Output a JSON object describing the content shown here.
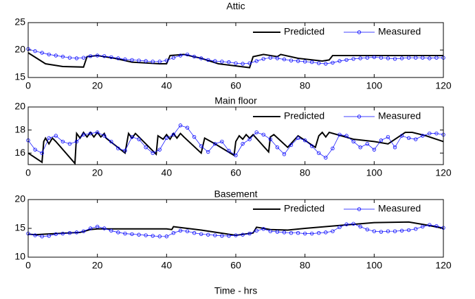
{
  "chart_data": [
    {
      "type": "line",
      "title": "Attic",
      "xlim": [
        0,
        120
      ],
      "xticks": [
        0,
        20,
        40,
        60,
        80,
        100,
        120
      ],
      "ylim": [
        15,
        25
      ],
      "yticks": [
        15,
        20,
        25
      ],
      "series": [
        {
          "name": "Predicted",
          "color": "#000000",
          "x": [
            0,
            5,
            10,
            16,
            17,
            20,
            25,
            30,
            38,
            40,
            41,
            45,
            50,
            55,
            64,
            65,
            68,
            72,
            73,
            78,
            85,
            87,
            88,
            120
          ],
          "values": [
            19.5,
            17.5,
            17,
            16.9,
            18.8,
            19,
            18.5,
            17.8,
            17.5,
            17.5,
            19,
            19.2,
            18.5,
            17.5,
            16.8,
            18.8,
            19.2,
            18.8,
            19.2,
            18.5,
            18,
            18.2,
            19,
            19
          ]
        },
        {
          "name": "Measured",
          "color": "#0000ff",
          "x": [
            0,
            2,
            4,
            6,
            8,
            10,
            12,
            14,
            16,
            18,
            20,
            22,
            24,
            26,
            28,
            30,
            32,
            34,
            36,
            38,
            40,
            42,
            44,
            46,
            48,
            50,
            52,
            54,
            56,
            58,
            60,
            62,
            64,
            66,
            68,
            70,
            72,
            74,
            76,
            78,
            80,
            82,
            84,
            86,
            88,
            90,
            92,
            94,
            96,
            98,
            100,
            102,
            104,
            106,
            108,
            110,
            112,
            114,
            116,
            118,
            120
          ],
          "values": [
            20.2,
            19.8,
            19.5,
            19.2,
            19,
            18.8,
            18.6,
            18.5,
            18.6,
            18.9,
            19,
            18.9,
            18.7,
            18.5,
            18.3,
            18.2,
            18.1,
            18,
            17.9,
            17.9,
            18.1,
            18.6,
            19,
            19.2,
            18.8,
            18.5,
            18.2,
            18,
            17.9,
            17.8,
            17.6,
            17.5,
            17.6,
            18,
            18.4,
            18.6,
            18.5,
            18.3,
            18.1,
            18,
            17.9,
            17.8,
            17.6,
            17.5,
            17.7,
            18,
            18.2,
            18.4,
            18.5,
            18.6,
            18.7,
            18.6,
            18.5,
            18.4,
            18.5,
            18.6,
            18.6,
            18.6,
            18.5,
            18.6,
            18.6
          ]
        }
      ]
    },
    {
      "type": "line",
      "title": "Main floor",
      "xlim": [
        0,
        120
      ],
      "xticks": [
        0,
        20,
        40,
        60,
        80,
        100,
        120
      ],
      "ylim": [
        15,
        20
      ],
      "yticks": [
        16,
        18,
        20
      ],
      "series": [
        {
          "name": "Predicted",
          "color": "#000000",
          "x": [
            0,
            4,
            4.5,
            5,
            6,
            7,
            8,
            13.5,
            14,
            15,
            16,
            17,
            18,
            19,
            20,
            21,
            22,
            22.5,
            28,
            29,
            30,
            31,
            32,
            37,
            37.5,
            39,
            40,
            41,
            42,
            43,
            44,
            45,
            50,
            51,
            54,
            59.5,
            60,
            61,
            62,
            63,
            64,
            65,
            69.5,
            70,
            71,
            75,
            78,
            83,
            84,
            85,
            86,
            87,
            94,
            100,
            104,
            109,
            111,
            115,
            120
          ],
          "values": [
            16,
            15.2,
            17,
            17.3,
            16.8,
            17.3,
            17,
            15.1,
            17.7,
            17.3,
            17.8,
            17.4,
            17.8,
            17.4,
            17.8,
            17.4,
            17.7,
            17.3,
            16,
            17.7,
            17.3,
            17.7,
            17.4,
            15.9,
            17.5,
            17.2,
            17.6,
            17.2,
            17.7,
            17.3,
            17.7,
            17.4,
            16,
            17.3,
            16.8,
            15.8,
            17,
            17.5,
            17.2,
            17.6,
            17.3,
            17.6,
            16.1,
            17.4,
            17.6,
            16.5,
            17.5,
            16.5,
            17.5,
            17.8,
            17.4,
            17.8,
            17.2,
            17,
            16.8,
            17.8,
            17.8,
            17.5,
            17
          ]
        },
        {
          "name": "Measured",
          "color": "#0000ff",
          "x": [
            0,
            2,
            4,
            6,
            8,
            10,
            12,
            14,
            16,
            18,
            20,
            22,
            24,
            26,
            28,
            30,
            32,
            34,
            36,
            38,
            40,
            42,
            44,
            46,
            48,
            50,
            52,
            54,
            56,
            58,
            60,
            62,
            64,
            66,
            68,
            70,
            72,
            74,
            76,
            78,
            80,
            82,
            84,
            86,
            88,
            90,
            92,
            94,
            96,
            98,
            100,
            102,
            104,
            106,
            108,
            110,
            112,
            114,
            116,
            118,
            120
          ],
          "values": [
            17.1,
            16.3,
            16,
            17.3,
            17.5,
            17,
            16.8,
            17,
            17.6,
            17.7,
            17.8,
            17.5,
            17,
            16.4,
            16.2,
            17.4,
            17.2,
            16.5,
            16,
            16.3,
            17.3,
            17.6,
            18.4,
            18.2,
            17.4,
            16.6,
            16.1,
            16.8,
            17,
            16.2,
            15.8,
            16.8,
            17.2,
            17.8,
            17.6,
            17.2,
            16.5,
            15.9,
            16.7,
            17.3,
            17.1,
            16.6,
            16,
            15.6,
            16.4,
            17.6,
            17.5,
            17,
            16.5,
            16.8,
            16.3,
            17.1,
            17.4,
            16.5,
            17.5,
            17.3,
            17.2,
            17.5,
            17.7,
            17.7,
            17.6
          ]
        }
      ]
    },
    {
      "type": "line",
      "title": "Basement",
      "xlabel": "Time - hrs",
      "xlim": [
        0,
        120
      ],
      "xticks": [
        0,
        20,
        40,
        60,
        80,
        100,
        120
      ],
      "ylim": [
        10,
        20
      ],
      "yticks": [
        10,
        15,
        20
      ],
      "series": [
        {
          "name": "Predicted",
          "color": "#000000",
          "x": [
            0,
            2,
            5,
            15,
            18,
            20,
            40,
            41.5,
            42,
            50,
            60,
            65,
            66,
            70,
            75,
            80,
            90,
            100,
            110,
            115,
            120
          ],
          "values": [
            14,
            13.9,
            14,
            14.3,
            14.8,
            14.9,
            14.9,
            14.8,
            15.3,
            14.7,
            13.8,
            14.2,
            15.2,
            14.8,
            14.7,
            15,
            15.5,
            16,
            16.1,
            15.6,
            15
          ]
        },
        {
          "name": "Measured",
          "color": "#0000ff",
          "x": [
            0,
            2,
            4,
            6,
            8,
            10,
            12,
            14,
            16,
            18,
            20,
            22,
            24,
            26,
            28,
            30,
            32,
            34,
            36,
            38,
            40,
            42,
            44,
            46,
            48,
            50,
            52,
            54,
            56,
            58,
            60,
            62,
            64,
            66,
            68,
            70,
            72,
            74,
            76,
            78,
            80,
            82,
            84,
            86,
            88,
            90,
            92,
            94,
            96,
            98,
            100,
            102,
            104,
            106,
            108,
            110,
            112,
            114,
            116,
            118,
            120
          ],
          "values": [
            14.1,
            13.8,
            13.6,
            13.7,
            14,
            14.1,
            14.2,
            14.3,
            14.5,
            15,
            15.3,
            15,
            14.6,
            14.3,
            14.1,
            14,
            13.9,
            13.8,
            13.7,
            13.6,
            13.6,
            14.2,
            14.6,
            14.5,
            14.2,
            14,
            13.9,
            13.8,
            13.7,
            13.7,
            13.8,
            13.9,
            14.1,
            14.6,
            14.9,
            14.5,
            14.4,
            14.3,
            14.2,
            14.2,
            14.1,
            14.1,
            14.2,
            14.3,
            14.5,
            15.2,
            15.7,
            15.8,
            15.3,
            14.8,
            14.5,
            14.4,
            14.5,
            14.5,
            14.6,
            14.7,
            14.9,
            15.3,
            15.6,
            15.4,
            15.1
          ]
        }
      ]
    }
  ]
}
